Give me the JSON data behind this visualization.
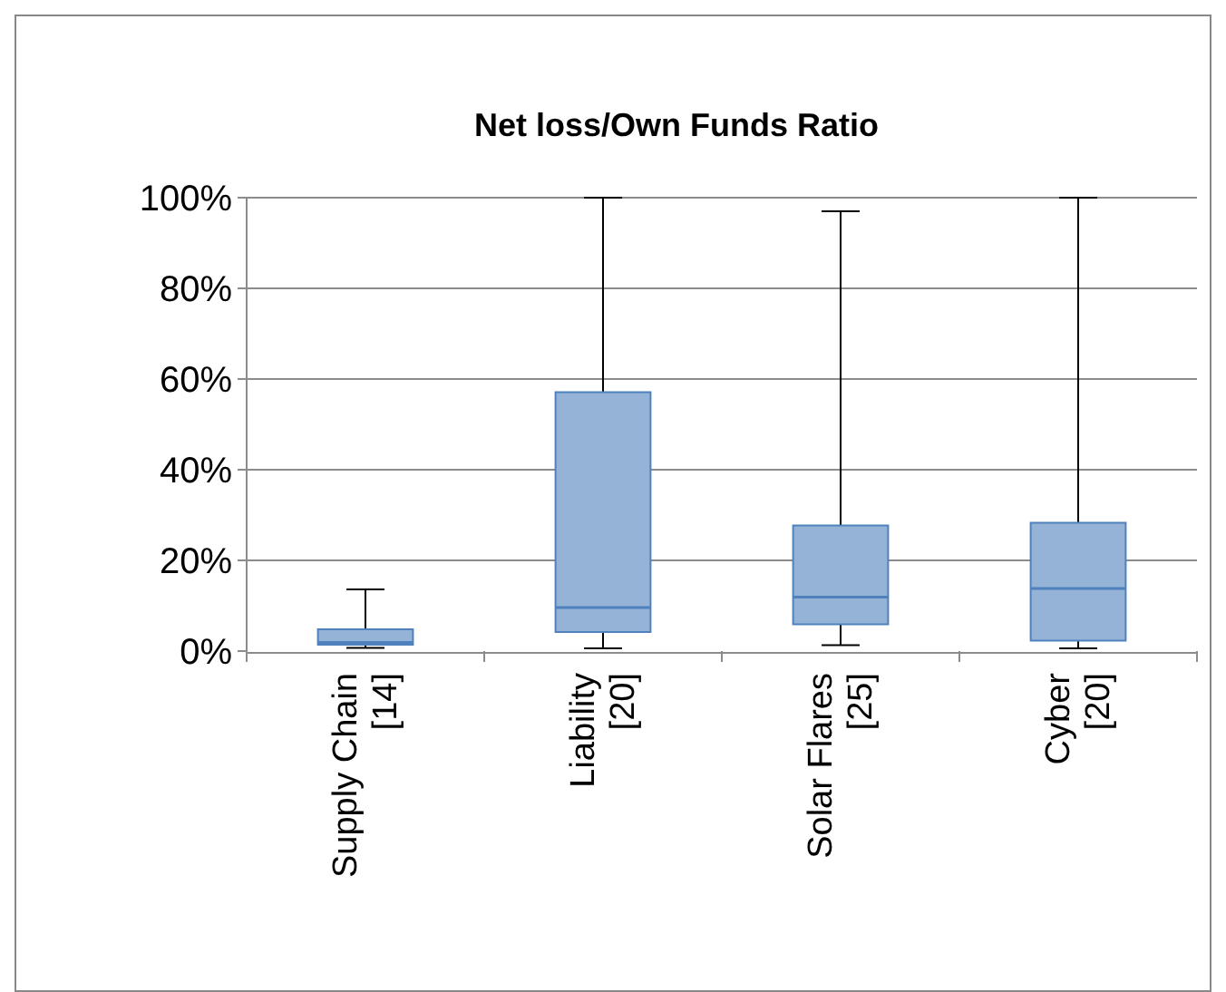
{
  "chart_data": {
    "type": "box",
    "title": "Net loss/Own Funds Ratio",
    "categories": [
      "Supply Chain\n[14]",
      "Liability\n[20]",
      "Solar Flares\n[25]",
      "Cyber\n[20]"
    ],
    "boxes": [
      {
        "low": 0.7,
        "q1": 1.4,
        "median": 1.9,
        "q3": 4.8,
        "high": 13.6
      },
      {
        "low": 0.6,
        "q1": 4.2,
        "median": 9.6,
        "q3": 57.1,
        "high": 100
      },
      {
        "low": 1.3,
        "q1": 5.9,
        "median": 11.9,
        "q3": 27.7,
        "high": 97
      },
      {
        "low": 0.6,
        "q1": 2.3,
        "median": 13.8,
        "q3": 28.3,
        "high": 100
      }
    ],
    "color": "#95b3d7",
    "ylim": [
      0,
      100
    ],
    "yticks": [
      {
        "value": 0,
        "label": "0%"
      },
      {
        "value": 20,
        "label": "20%"
      },
      {
        "value": 40,
        "label": "40%"
      },
      {
        "value": 60,
        "label": "60%"
      },
      {
        "value": 80,
        "label": "80%"
      },
      {
        "value": 100,
        "label": "100%"
      }
    ],
    "grid": "y"
  }
}
